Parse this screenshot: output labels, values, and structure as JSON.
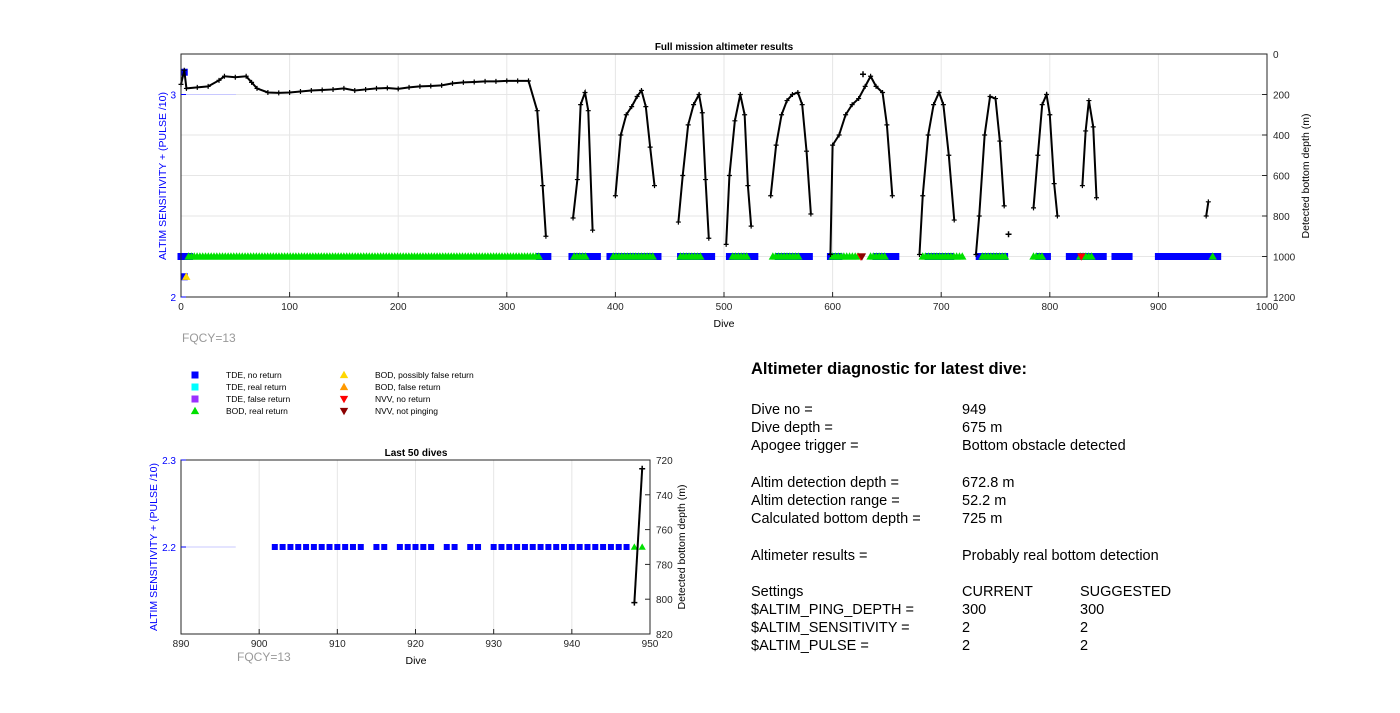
{
  "chart_data": [
    {
      "type": "scatter",
      "title": "Full mission altimeter results",
      "xlabel": "Dive",
      "ylabel_left": "ALTIM SENSITIVITY + (PULSE /10)",
      "ylabel_right": "Detected bottom depth (m)",
      "xlim": [
        0,
        1000
      ],
      "ylim_left": [
        2,
        3.2
      ],
      "ylim_right": [
        1200,
        0
      ],
      "x_ticks": [
        "0",
        "100",
        "200",
        "300",
        "400",
        "500",
        "600",
        "700",
        "800",
        "900",
        "1000"
      ],
      "y_left_ticks": [
        "2",
        "3"
      ],
      "y_right_ticks": [
        "0",
        "200",
        "400",
        "600",
        "800",
        "1000",
        "1200"
      ],
      "grid": true,
      "annotation": "FQCY=13",
      "settings_markers": [
        {
          "dive": 3,
          "value": 3.11,
          "marker": "TDE, no return"
        },
        {
          "dive": 3,
          "value": 2.1,
          "marker": "TDE, no return"
        },
        {
          "dive": 3,
          "value": 2.1,
          "marker": "BOD, possibly false return"
        }
      ],
      "bottom_depth_segments": [
        [
          [
            0,
            150
          ],
          [
            3,
            80
          ],
          [
            5,
            170
          ],
          [
            15,
            165
          ],
          [
            25,
            160
          ],
          [
            35,
            130
          ],
          [
            40,
            110
          ],
          [
            50,
            115
          ],
          [
            60,
            110
          ],
          [
            65,
            140
          ],
          [
            70,
            170
          ],
          [
            80,
            190
          ],
          [
            90,
            192
          ],
          [
            100,
            190
          ],
          [
            110,
            185
          ],
          [
            120,
            180
          ],
          [
            130,
            178
          ],
          [
            140,
            175
          ],
          [
            150,
            170
          ],
          [
            160,
            180
          ],
          [
            170,
            175
          ],
          [
            180,
            170
          ],
          [
            190,
            168
          ],
          [
            200,
            172
          ],
          [
            210,
            165
          ],
          [
            220,
            160
          ],
          [
            230,
            158
          ],
          [
            240,
            155
          ],
          [
            250,
            145
          ],
          [
            260,
            140
          ],
          [
            270,
            138
          ],
          [
            280,
            135
          ],
          [
            290,
            135
          ],
          [
            300,
            133
          ],
          [
            310,
            133
          ],
          [
            320,
            133
          ],
          [
            328,
            280
          ],
          [
            333,
            650
          ],
          [
            336,
            900
          ]
        ],
        [
          [
            361,
            810
          ],
          [
            365,
            620
          ],
          [
            368,
            250
          ],
          [
            372,
            190
          ],
          [
            375,
            280
          ],
          [
            379,
            870
          ]
        ],
        [
          [
            400,
            700
          ],
          [
            405,
            400
          ],
          [
            410,
            300
          ],
          [
            415,
            260
          ],
          [
            420,
            210
          ],
          [
            424,
            180
          ],
          [
            428,
            260
          ],
          [
            432,
            460
          ],
          [
            436,
            650
          ]
        ],
        [
          [
            458,
            830
          ],
          [
            462,
            600
          ],
          [
            467,
            350
          ],
          [
            472,
            250
          ],
          [
            477,
            200
          ],
          [
            480,
            290
          ],
          [
            483,
            620
          ],
          [
            486,
            910
          ]
        ],
        [
          [
            502,
            940
          ],
          [
            505,
            600
          ],
          [
            510,
            330
          ],
          [
            515,
            200
          ],
          [
            519,
            300
          ],
          [
            522,
            650
          ],
          [
            525,
            850
          ]
        ],
        [
          [
            543,
            700
          ],
          [
            548,
            450
          ],
          [
            553,
            300
          ],
          [
            558,
            230
          ],
          [
            563,
            200
          ],
          [
            568,
            190
          ],
          [
            572,
            250
          ],
          [
            576,
            480
          ],
          [
            580,
            790
          ]
        ],
        [
          [
            598,
            990
          ],
          [
            600,
            450
          ],
          [
            606,
            400
          ],
          [
            612,
            300
          ],
          [
            618,
            250
          ],
          [
            624,
            220
          ],
          [
            630,
            160
          ],
          [
            635,
            110
          ],
          [
            640,
            160
          ],
          [
            646,
            190
          ],
          [
            650,
            350
          ],
          [
            655,
            700
          ]
        ],
        [
          [
            680,
            990
          ],
          [
            683,
            700
          ],
          [
            688,
            400
          ],
          [
            693,
            250
          ],
          [
            698,
            190
          ],
          [
            702,
            250
          ],
          [
            707,
            500
          ],
          [
            712,
            820
          ]
        ],
        [
          [
            732,
            990
          ],
          [
            735,
            800
          ],
          [
            740,
            400
          ],
          [
            745,
            210
          ],
          [
            750,
            220
          ],
          [
            754,
            430
          ],
          [
            758,
            750
          ]
        ],
        [
          [
            785,
            760
          ],
          [
            789,
            500
          ],
          [
            793,
            250
          ],
          [
            797,
            200
          ],
          [
            800,
            300
          ],
          [
            804,
            640
          ],
          [
            807,
            800
          ]
        ],
        [
          [
            830,
            650
          ],
          [
            833,
            380
          ],
          [
            836,
            230
          ],
          [
            840,
            360
          ],
          [
            843,
            710
          ]
        ],
        [
          [
            944,
            800
          ],
          [
            946,
            730
          ]
        ]
      ],
      "bottom_depth_points": [
        [
          628,
          100
        ],
        [
          762,
          890
        ]
      ],
      "status_runs": [
        {
          "marker": "TDE, no return",
          "ranges": [
            [
              0,
              10
            ],
            [
              330,
              340
            ],
            [
              360,
              385
            ],
            [
              395,
              440
            ],
            [
              460,
              490
            ],
            [
              505,
              530
            ],
            [
              550,
              580
            ],
            [
              598,
              608
            ],
            [
              640,
              660
            ],
            [
              688,
              710
            ],
            [
              735,
              760
            ],
            [
              790,
              800
            ],
            [
              818,
              850
            ],
            [
              860,
              875
            ],
            [
              900,
              955
            ]
          ]
        },
        {
          "marker": "BOD, real return",
          "ranges": [
            [
              7,
              330
            ],
            [
              362,
              375
            ],
            [
              398,
              435
            ],
            [
              460,
              480
            ],
            [
              508,
              522
            ],
            [
              545,
              570
            ],
            [
              600,
              625
            ],
            [
              635,
              650
            ],
            [
              683,
              720
            ],
            [
              738,
              760
            ],
            [
              785,
              795
            ],
            [
              828,
              840
            ],
            [
              950,
              952
            ]
          ]
        },
        {
          "marker": "NVV, no return",
          "ranges": [
            [
              626,
              627
            ],
            [
              829,
              830
            ]
          ]
        },
        {
          "marker": "NVV, not pinging",
          "ranges": [
            [
              627,
              628
            ]
          ]
        }
      ]
    },
    {
      "type": "scatter",
      "title": "Last 50 dives",
      "xlabel": "Dive",
      "ylabel_left": "ALTIM SENSITIVITY + (PULSE /10)",
      "ylabel_right": "Detected bottom depth (m)",
      "xlim": [
        890,
        950
      ],
      "ylim_left": [
        2.1,
        2.3
      ],
      "ylim_right": [
        820,
        720
      ],
      "x_ticks": [
        "890",
        "900",
        "910",
        "920",
        "930",
        "940",
        "950"
      ],
      "y_left_ticks": [
        "2.2",
        "2.3"
      ],
      "y_right_ticks": [
        "720",
        "740",
        "760",
        "780",
        "800",
        "820"
      ],
      "grid": true,
      "annotation": "FQCY=13",
      "value_points": [
        {
          "dive": 902,
          "value": 2.2,
          "marker": "TDE, no return"
        },
        {
          "dive": 903,
          "value": 2.2,
          "marker": "TDE, no return"
        },
        {
          "dive": 904,
          "value": 2.2,
          "marker": "TDE, no return"
        },
        {
          "dive": 905,
          "value": 2.2,
          "marker": "TDE, no return"
        },
        {
          "dive": 906,
          "value": 2.2,
          "marker": "TDE, no return"
        },
        {
          "dive": 907,
          "value": 2.2,
          "marker": "TDE, no return"
        },
        {
          "dive": 908,
          "value": 2.2,
          "marker": "TDE, no return"
        },
        {
          "dive": 909,
          "value": 2.2,
          "marker": "TDE, no return"
        },
        {
          "dive": 910,
          "value": 2.2,
          "marker": "TDE, no return"
        },
        {
          "dive": 911,
          "value": 2.2,
          "marker": "TDE, no return"
        },
        {
          "dive": 912,
          "value": 2.2,
          "marker": "TDE, no return"
        },
        {
          "dive": 913,
          "value": 2.2,
          "marker": "TDE, no return"
        },
        {
          "dive": 915,
          "value": 2.2,
          "marker": "TDE, no return"
        },
        {
          "dive": 916,
          "value": 2.2,
          "marker": "TDE, no return"
        },
        {
          "dive": 918,
          "value": 2.2,
          "marker": "TDE, no return"
        },
        {
          "dive": 919,
          "value": 2.2,
          "marker": "TDE, no return"
        },
        {
          "dive": 920,
          "value": 2.2,
          "marker": "TDE, no return"
        },
        {
          "dive": 921,
          "value": 2.2,
          "marker": "TDE, no return"
        },
        {
          "dive": 922,
          "value": 2.2,
          "marker": "TDE, no return"
        },
        {
          "dive": 924,
          "value": 2.2,
          "marker": "TDE, no return"
        },
        {
          "dive": 925,
          "value": 2.2,
          "marker": "TDE, no return"
        },
        {
          "dive": 927,
          "value": 2.2,
          "marker": "TDE, no return"
        },
        {
          "dive": 928,
          "value": 2.2,
          "marker": "TDE, no return"
        },
        {
          "dive": 930,
          "value": 2.2,
          "marker": "TDE, no return"
        },
        {
          "dive": 931,
          "value": 2.2,
          "marker": "TDE, no return"
        },
        {
          "dive": 932,
          "value": 2.2,
          "marker": "TDE, no return"
        },
        {
          "dive": 933,
          "value": 2.2,
          "marker": "TDE, no return"
        },
        {
          "dive": 934,
          "value": 2.2,
          "marker": "TDE, no return"
        },
        {
          "dive": 935,
          "value": 2.2,
          "marker": "TDE, no return"
        },
        {
          "dive": 936,
          "value": 2.2,
          "marker": "TDE, no return"
        },
        {
          "dive": 937,
          "value": 2.2,
          "marker": "TDE, no return"
        },
        {
          "dive": 938,
          "value": 2.2,
          "marker": "TDE, no return"
        },
        {
          "dive": 939,
          "value": 2.2,
          "marker": "TDE, no return"
        },
        {
          "dive": 940,
          "value": 2.2,
          "marker": "TDE, no return"
        },
        {
          "dive": 941,
          "value": 2.2,
          "marker": "TDE, no return"
        },
        {
          "dive": 942,
          "value": 2.2,
          "marker": "TDE, no return"
        },
        {
          "dive": 943,
          "value": 2.2,
          "marker": "TDE, no return"
        },
        {
          "dive": 944,
          "value": 2.2,
          "marker": "TDE, no return"
        },
        {
          "dive": 945,
          "value": 2.2,
          "marker": "TDE, no return"
        },
        {
          "dive": 946,
          "value": 2.2,
          "marker": "TDE, no return"
        },
        {
          "dive": 947,
          "value": 2.2,
          "marker": "TDE, no return"
        },
        {
          "dive": 948,
          "value": 2.2,
          "marker": "BOD, real return"
        },
        {
          "dive": 949,
          "value": 2.2,
          "marker": "BOD, real return"
        }
      ],
      "bottom_depth_segment": [
        [
          948,
          802
        ],
        [
          949,
          725
        ]
      ]
    }
  ],
  "legend": [
    {
      "label": "TDE, no return",
      "shape": "square",
      "color": "#0000ff"
    },
    {
      "label": "TDE, real return",
      "shape": "square",
      "color": "#00ffff"
    },
    {
      "label": "TDE, false return",
      "shape": "square",
      "color": "#9b30ff"
    },
    {
      "label": "BOD, real return",
      "shape": "triangle-up",
      "color": "#00e000"
    },
    {
      "label": "BOD, possibly false return",
      "shape": "triangle-up",
      "color": "#ffd700"
    },
    {
      "label": "BOD, false return",
      "shape": "triangle-up",
      "color": "#ff9900"
    },
    {
      "label": "NVV, no return",
      "shape": "triangle-down",
      "color": "#ff0000"
    },
    {
      "label": "NVV, not pinging",
      "shape": "triangle-down",
      "color": "#8b0000"
    }
  ],
  "diagnostic": {
    "title": "Altimeter diagnostic for latest dive:",
    "dive_no_label": "Dive no =",
    "dive_no": "949",
    "dive_depth_label": "Dive depth =",
    "dive_depth": "675 m",
    "apogee_label": "Apogee trigger =",
    "apogee": "Bottom obstacle detected",
    "det_depth_label": "Altim detection depth =",
    "det_depth": "672.8 m",
    "det_range_label": "Altim detection range =",
    "det_range": "52.2 m",
    "calc_depth_label": "Calculated bottom depth =",
    "calc_depth": "725 m",
    "results_label": "Altimeter results =",
    "results": "Probably real bottom detection",
    "settings_label": "Settings",
    "current_label": "CURRENT",
    "suggested_label": "SUGGESTED",
    "ping_label": "$ALTIM_PING_DEPTH =",
    "ping_current": "300",
    "ping_suggested": "300",
    "sens_label": "$ALTIM_SENSITIVITY =",
    "sens_current": "2",
    "sens_suggested": "2",
    "pulse_label": "$ALTIM_PULSE =",
    "pulse_current": "2",
    "pulse_suggested": "2"
  },
  "colors": {
    "axis_left": "#0000ff",
    "axis": "#262626",
    "grid": "#e6e6e6",
    "ref_line": "#c8c8ff",
    "depth": "#000000",
    "annotation": "#999999"
  }
}
